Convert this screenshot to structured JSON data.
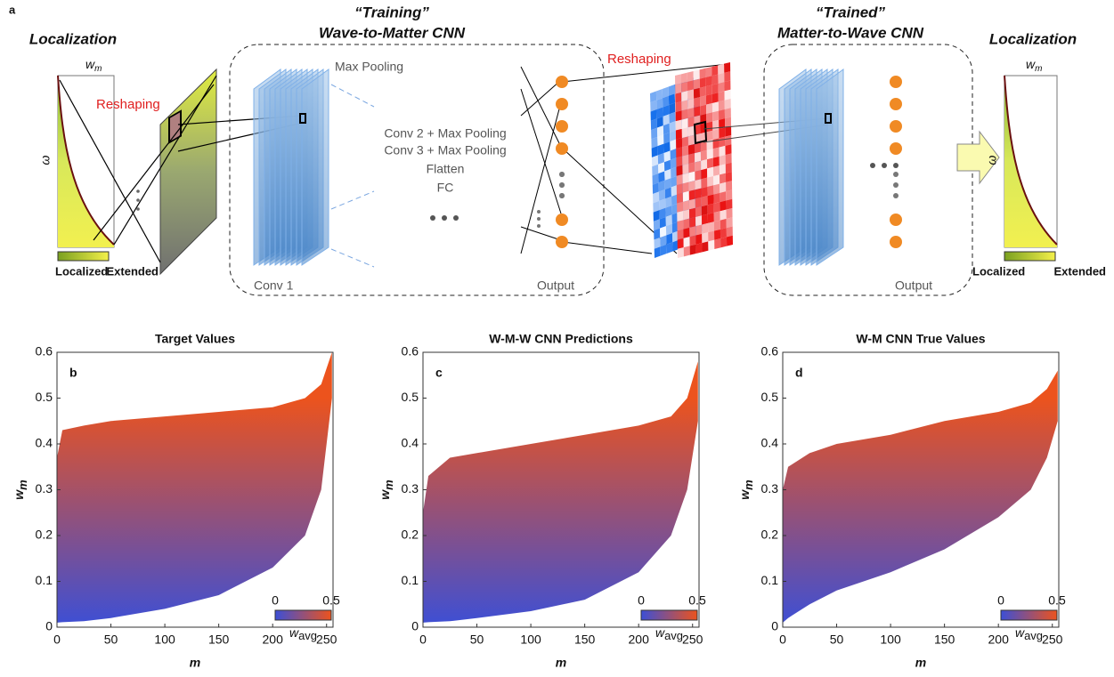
{
  "diagram": {
    "panel_label": "a",
    "left": {
      "title": "Localization",
      "top_label": "w",
      "top_label_sub": "m",
      "side_label": "ω",
      "colorbar_low": "Localized",
      "colorbar_high": "Extended"
    },
    "reshaping_left": "Reshaping",
    "training": {
      "quote": "“Training”",
      "title": "Wave-to-Matter CNN",
      "layers": [
        "Max Pooling",
        "Conv 2 + Max Pooling",
        "Conv 3 + Max Pooling",
        "Flatten",
        "FC"
      ],
      "first_layer": "Conv 1",
      "output": "Output"
    },
    "reshaping_right": "Reshaping",
    "trained": {
      "quote": "“Trained”",
      "title": "Matter-to-Wave CNN",
      "output": "Output"
    },
    "right": {
      "title": "Localization",
      "top_label": "w",
      "top_label_sub": "m",
      "side_label": "ω",
      "colorbar_low": "Localized",
      "colorbar_high": "Extended"
    }
  },
  "chart_data": [
    {
      "type": "band",
      "panel": "b",
      "title": "Target Values",
      "xlabel": "m",
      "ylabel": "w",
      "ylabel_sub": "m",
      "x": [
        0,
        5,
        25,
        50,
        100,
        150,
        200,
        230,
        245,
        255
      ],
      "series": [
        {
          "values": [
            0.37,
            0.43,
            0.44,
            0.45,
            0.46,
            0.47,
            0.48,
            0.5,
            0.53,
            0.6
          ]
        },
        {
          "values": [
            0.01,
            0.011,
            0.013,
            0.02,
            0.04,
            0.07,
            0.13,
            0.2,
            0.3,
            0.5
          ]
        }
      ],
      "color_low": "#3c4fd6",
      "color_high": "#ec531d",
      "xlim": [
        0,
        256
      ],
      "xticks": [
        0,
        50,
        100,
        150,
        200,
        250
      ],
      "ylim": [
        0,
        0.6
      ],
      "yticks": [
        0,
        0.1,
        0.2,
        0.3,
        0.4,
        0.5,
        0.6
      ],
      "colorbar": {
        "lim": [
          0,
          0.5
        ],
        "ticks": [
          0,
          0.5
        ],
        "label": "w",
        "label_sub": "avg"
      }
    },
    {
      "type": "band",
      "panel": "c",
      "title": "W-M-W CNN Predictions",
      "xlabel": "m",
      "ylabel": "w",
      "ylabel_sub": "m",
      "x": [
        0,
        5,
        25,
        50,
        100,
        150,
        200,
        230,
        245,
        255
      ],
      "series": [
        {
          "values": [
            0.25,
            0.33,
            0.37,
            0.38,
            0.4,
            0.42,
            0.44,
            0.46,
            0.5,
            0.58
          ]
        },
        {
          "values": [
            0.01,
            0.011,
            0.013,
            0.02,
            0.035,
            0.06,
            0.12,
            0.2,
            0.3,
            0.45
          ]
        }
      ],
      "color_low": "#3c4fd6",
      "color_high": "#ec531d",
      "xlim": [
        0,
        256
      ],
      "xticks": [
        0,
        50,
        100,
        150,
        200,
        250
      ],
      "ylim": [
        0,
        0.6
      ],
      "yticks": [
        0,
        0.1,
        0.2,
        0.3,
        0.4,
        0.5,
        0.6
      ],
      "colorbar": {
        "lim": [
          0,
          0.5
        ],
        "ticks": [
          0,
          0.5
        ],
        "label": "w",
        "label_sub": "avg"
      }
    },
    {
      "type": "band",
      "panel": "d",
      "title": "W-M CNN True Values",
      "xlabel": "m",
      "ylabel": "w",
      "ylabel_sub": "m",
      "x": [
        0,
        5,
        25,
        50,
        100,
        150,
        200,
        230,
        245,
        255
      ],
      "series": [
        {
          "values": [
            0.3,
            0.35,
            0.38,
            0.4,
            0.42,
            0.45,
            0.47,
            0.49,
            0.52,
            0.56
          ]
        },
        {
          "values": [
            0.01,
            0.02,
            0.05,
            0.08,
            0.12,
            0.17,
            0.24,
            0.3,
            0.37,
            0.45
          ]
        }
      ],
      "color_low": "#3c4fd6",
      "color_high": "#ec531d",
      "xlim": [
        0,
        256
      ],
      "xticks": [
        0,
        50,
        100,
        150,
        200,
        250
      ],
      "ylim": [
        0,
        0.6
      ],
      "yticks": [
        0,
        0.1,
        0.2,
        0.3,
        0.4,
        0.5,
        0.6
      ],
      "colorbar": {
        "lim": [
          0,
          0.5
        ],
        "ticks": [
          0,
          0.5
        ],
        "label": "w",
        "label_sub": "avg"
      }
    }
  ]
}
